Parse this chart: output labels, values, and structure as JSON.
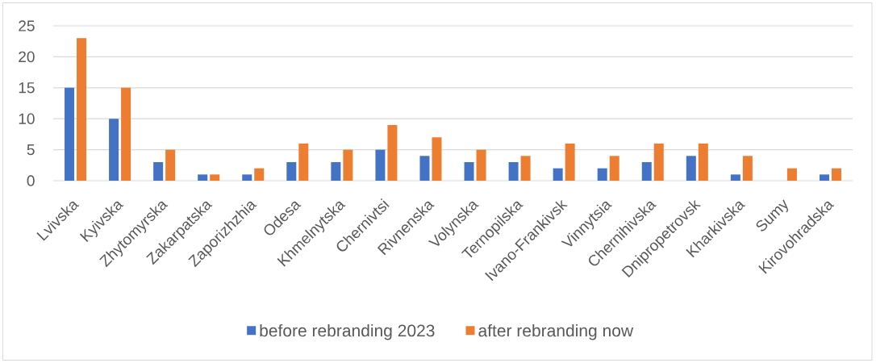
{
  "chart_data": {
    "type": "bar",
    "categories": [
      "Lvivska",
      "Kyivska",
      "Zhytomyrska",
      "Zakarpatska",
      "Zaporizhzhia",
      "Odesa",
      "Khmelnytska",
      "Chernivtsi",
      "Rivnenska",
      "Volynska",
      "Ternopilska",
      "Ivano-Frankivsk",
      "Vinnytsia",
      "Chernihivska",
      "Dnipropetrovsk",
      "Kharkivska",
      "Sumy",
      "Kirovohradska"
    ],
    "series": [
      {
        "name": "before rebranding 2023",
        "color": "#4472c4",
        "values": [
          15,
          10,
          3,
          1,
          1,
          3,
          3,
          5,
          4,
          3,
          3,
          2,
          2,
          3,
          4,
          1,
          null,
          1
        ]
      },
      {
        "name": "after rebranding now",
        "color": "#ed7d31",
        "values": [
          23,
          15,
          5,
          1,
          2,
          6,
          5,
          9,
          7,
          5,
          4,
          6,
          4,
          6,
          6,
          4,
          2,
          2
        ]
      }
    ],
    "ylim": [
      0,
      25
    ],
    "yticks": [
      0,
      5,
      10,
      15,
      20,
      25
    ],
    "grid": "y",
    "legend": "bottom"
  }
}
